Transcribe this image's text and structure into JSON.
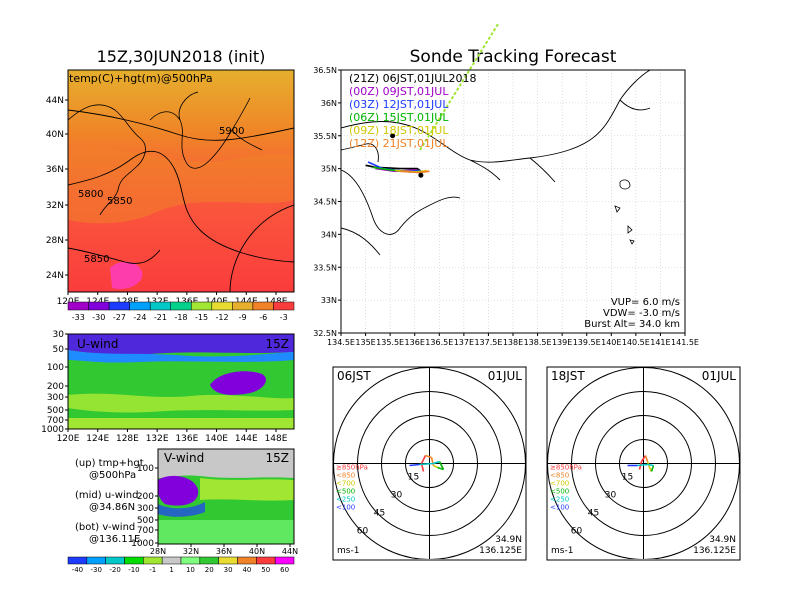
{
  "chart_data": [
    {
      "type": "heatmap",
      "panel": "500hPa map",
      "title": "15Z,30JUN2018 (init)",
      "subtitle": "temp(C)+hgt(m)@500hPa",
      "x_ticks": [
        "120E",
        "124E",
        "128E",
        "132E",
        "136E",
        "140E",
        "144E",
        "148E"
      ],
      "y_ticks": [
        "44N",
        "40N",
        "36N",
        "32N",
        "28N",
        "24N"
      ],
      "contour_labels": [
        "5900",
        "5800",
        "5850",
        "5850"
      ],
      "colorbar_ticks": [
        "-33",
        "-30",
        "-27",
        "-24",
        "-21",
        "-18",
        "-15",
        "-12",
        "-9",
        "-6",
        "-3"
      ],
      "colorbar_colors": [
        "#a000c8",
        "#8200dc",
        "#1e3cff",
        "#00a0ff",
        "#00c8c8",
        "#00d28c",
        "#a0e632",
        "#e6dc32",
        "#e6af2d",
        "#f08228",
        "#fa3c3c"
      ]
    },
    {
      "type": "heatmap",
      "panel": "u-wind cross section",
      "label": "U-wind",
      "time": "15Z",
      "x_ticks": [
        "120E",
        "124E",
        "128E",
        "132E",
        "136E",
        "140E",
        "144E",
        "148E"
      ],
      "y_ticks": [
        "30",
        "50",
        "100",
        "200",
        "300",
        "500",
        "700",
        "1000"
      ]
    },
    {
      "type": "heatmap",
      "panel": "v-wind cross section",
      "label": "V-wind",
      "time": "15Z",
      "x_ticks": [
        "28N",
        "32N",
        "36N",
        "40N",
        "44N"
      ],
      "y_ticks": [
        "100",
        "200",
        "300",
        "500",
        "700",
        "1000"
      ],
      "colorbar_ticks": [
        "-40",
        "-30",
        "-20",
        "-10",
        "-1",
        "1",
        "10",
        "20",
        "30",
        "40",
        "50",
        "60"
      ],
      "colorbar_colors": [
        "#1e3cff",
        "#00a0ff",
        "#00c8c8",
        "#00dc00",
        "#a0e632",
        "#c8c8c8",
        "#7fff7f",
        "#32c832",
        "#e6dc32",
        "#f08228",
        "#fa3c3c",
        "#ff00ff"
      ]
    },
    {
      "type": "line",
      "panel": "sonde tracking map",
      "title": "Sonde Tracking Forecast",
      "x_ticks": [
        "134.5E",
        "135E",
        "135.5E",
        "136E",
        "136.5E",
        "137E",
        "137.5E",
        "138E",
        "138.5E",
        "139E",
        "139.5E",
        "140E",
        "140.5E",
        "141E",
        "141.5E"
      ],
      "y_ticks": [
        "36.5N",
        "36N",
        "35.5N",
        "35N",
        "34.5N",
        "34N",
        "33.5N",
        "33N",
        "32.5N"
      ],
      "xlim": [
        134.5,
        141.5
      ],
      "ylim": [
        32.5,
        36.5
      ],
      "series": [
        {
          "name": "(21Z) 06JST,01JUL2018",
          "color": "#000000"
        },
        {
          "name": "(00Z) 09JST,01JUL",
          "color": "#a000c8"
        },
        {
          "name": "(03Z) 12JST,01JUL",
          "color": "#1e3cff"
        },
        {
          "name": "(06Z) 15JST,01JUL",
          "color": "#00b400"
        },
        {
          "name": "(09Z) 18JST,01JUL",
          "color": "#d2c800"
        },
        {
          "name": "(12Z) 21JST,01JUL",
          "color": "#f08228"
        }
      ],
      "stats": [
        "VUP= 6.0 m/s",
        "VDW= -3.0 m/s",
        "Burst Alt= 34.0 km"
      ]
    },
    {
      "type": "scatter",
      "panel": "hodograph 06JST",
      "time": "06JST",
      "date": "01JUL",
      "ring_labels": [
        "15",
        "30",
        "45",
        "60"
      ],
      "legend": [
        {
          "label": "≥850hPa",
          "color": "#fa3c3c"
        },
        {
          "label": "<850",
          "color": "#f08228"
        },
        {
          "label": "<700",
          "color": "#d2c800"
        },
        {
          "label": "<500",
          "color": "#00b400"
        },
        {
          "label": "<250",
          "color": "#00c8c8"
        },
        {
          "label": "<100",
          "color": "#1e3cff"
        }
      ],
      "location": [
        "34.9N",
        "136.125E"
      ],
      "unit": "ms-1"
    },
    {
      "type": "scatter",
      "panel": "hodograph 18JST",
      "time": "18JST",
      "date": "01JUL",
      "ring_labels": [
        "15",
        "30",
        "45",
        "60"
      ],
      "legend": [
        {
          "label": "≥850hPa",
          "color": "#fa3c3c"
        },
        {
          "label": "<850",
          "color": "#f08228"
        },
        {
          "label": "<700",
          "color": "#d2c800"
        },
        {
          "label": "<500",
          "color": "#00b400"
        },
        {
          "label": "<250",
          "color": "#00c8c8"
        },
        {
          "label": "<100",
          "color": "#1e3cff"
        }
      ],
      "location": [
        "34.9N",
        "136.125E"
      ],
      "unit": "ms-1"
    }
  ],
  "side_legend": [
    {
      "line1": "(up) tmp+hgt",
      "line2": "@500hPa"
    },
    {
      "line1": "(mid) u-wind",
      "line2": "@34.86N"
    },
    {
      "line1": "(bot) v-wind",
      "line2": "@136.11E"
    }
  ]
}
